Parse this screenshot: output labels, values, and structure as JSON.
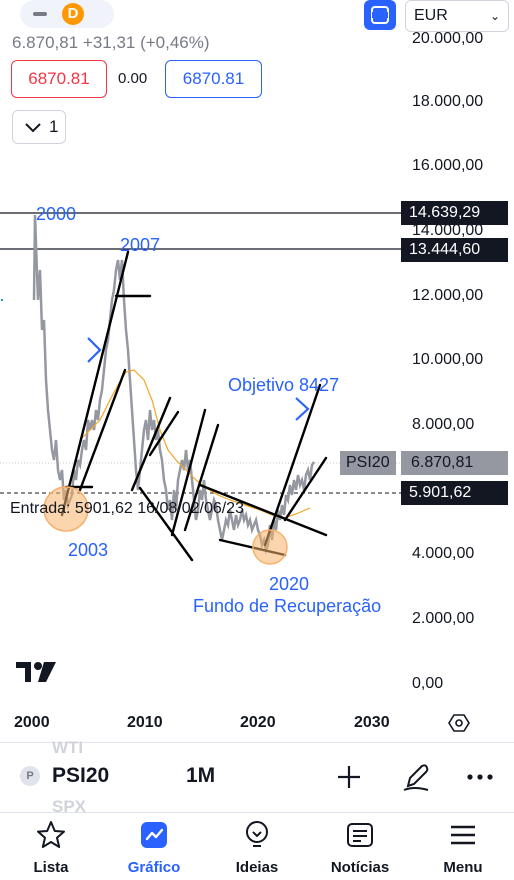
{
  "header": {
    "minus_icon": "minus-icon",
    "source_badge": "D",
    "fullscreen_icon": "fullscreen-icon",
    "currency": "EUR",
    "quote_line": "6.870,81 +31,31 (+0,46%)",
    "sell_price": "6870.81",
    "spread": "0.00",
    "buy_price": "6870.81",
    "quantity": "1"
  },
  "price_axis": {
    "ticks": [
      "20.000,00",
      "18.000,00",
      "16.000,00",
      "14.000,00",
      "12.000,00",
      "10.000,00",
      "8.000,00",
      "4.000,00",
      "2.000,00",
      "0,00"
    ],
    "highlight_1": "14.639,29",
    "highlight_2": "13.444,60",
    "last_price": "6.870,81",
    "entry_level": "5.901,62",
    "symbol_tag": "PSI20"
  },
  "annotations": {
    "y2000": "2000",
    "y2007": "2007",
    "y2003": "2003",
    "y2020": "2020",
    "objective": "Objetivo 8427",
    "recovery": "Fundo de Recuperação",
    "entry": "Entrada: 5901,62 16/08/02/06/23"
  },
  "time_axis": {
    "ticks": [
      "2000",
      "2010",
      "2020",
      "2030"
    ],
    "settings_icon": "hexagon-settings-icon"
  },
  "symbol_bar": {
    "dot": "P",
    "symbol": "PSI20",
    "interval": "1M",
    "ghost_top": "WTI",
    "ghost_bottom": "SPX",
    "add_icon": "plus-icon",
    "draw_icon": "pen-icon",
    "more_icon": "ellipsis-icon"
  },
  "bottom_nav": {
    "items": [
      {
        "label": "Lista",
        "icon": "star-icon",
        "active": false
      },
      {
        "label": "Gráfico",
        "icon": "chart-icon",
        "active": true
      },
      {
        "label": "Ideias",
        "icon": "lightbulb-icon",
        "active": false
      },
      {
        "label": "Notícias",
        "icon": "news-icon",
        "active": false
      },
      {
        "label": "Menu",
        "icon": "menu-icon",
        "active": false
      }
    ]
  },
  "colors": {
    "accent": "#2962ff",
    "sell": "#f23645",
    "price_line": "#9598a1",
    "ma_line": "#f5a623",
    "circle_fill": "#f6b26b"
  }
}
